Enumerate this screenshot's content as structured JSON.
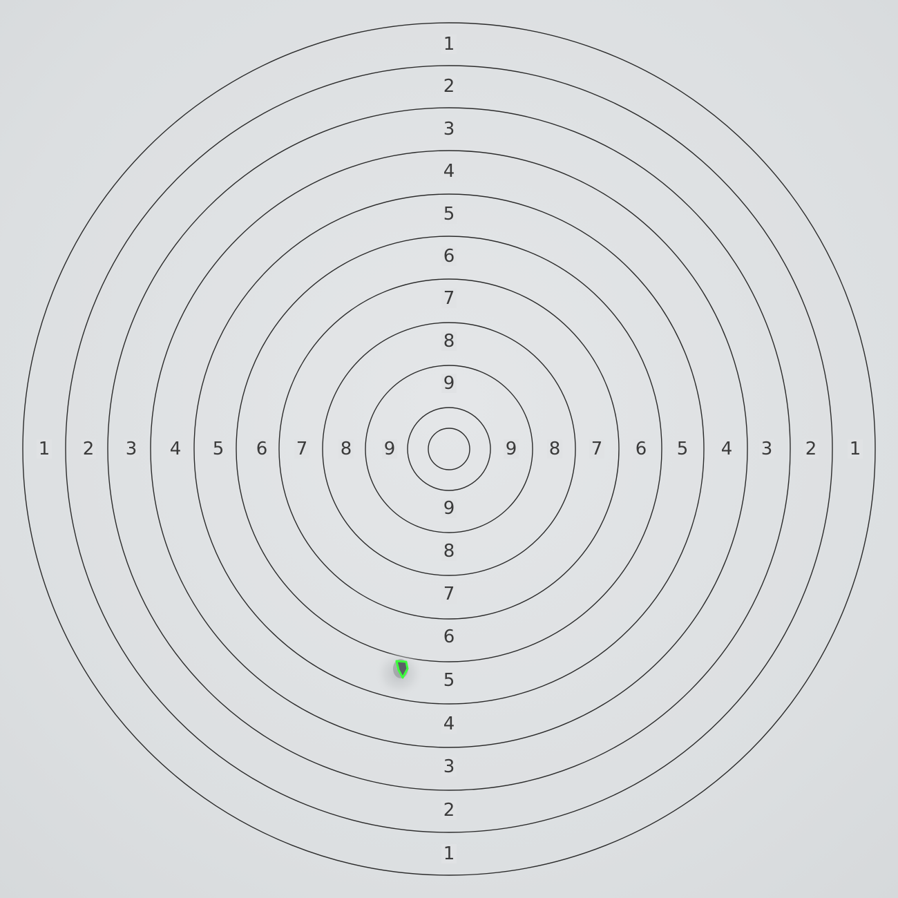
{
  "target": {
    "ring_labels": {
      "top": [
        "1",
        "2",
        "3",
        "4",
        "5",
        "6",
        "7",
        "8",
        "9"
      ],
      "left": [
        "1",
        "2",
        "3",
        "4",
        "5",
        "6",
        "7",
        "8",
        "9"
      ],
      "right": [
        "9",
        "8",
        "7",
        "6",
        "5",
        "4",
        "3",
        "2",
        "1"
      ],
      "bottom": [
        "9",
        "8",
        "7",
        "6",
        "5",
        "4",
        "3",
        "2",
        "1"
      ]
    },
    "colors": {
      "paper": "#dfe1e3",
      "ring_stroke": "#2a2a2a",
      "label_text": "#3a3a3a",
      "hole_highlight": "#3cff3c"
    },
    "shot": {
      "ring_score": "5",
      "marker": "green-outline"
    }
  }
}
